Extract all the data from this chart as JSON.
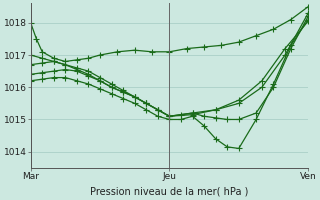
{
  "bg_color": "#cce8e0",
  "line_color": "#1a6b1a",
  "grid_color": "#aacfc8",
  "xlabel": "Pression niveau de la mer( hPa )",
  "xtick_labels": [
    "Mar",
    "Jeu",
    "Ven"
  ],
  "xtick_positions": [
    0,
    48,
    96
  ],
  "ylim": [
    1013.5,
    1018.6
  ],
  "yticks": [
    1014,
    1015,
    1016,
    1017,
    1018
  ],
  "xlim": [
    0,
    96
  ],
  "series": [
    {
      "x": [
        0,
        2,
        4,
        8,
        12,
        16,
        20,
        24,
        30,
        36,
        42,
        48,
        54,
        60,
        66,
        72,
        78,
        84,
        90,
        96
      ],
      "y": [
        1018.0,
        1017.5,
        1017.1,
        1016.9,
        1016.8,
        1016.85,
        1016.9,
        1017.0,
        1017.1,
        1017.15,
        1017.1,
        1017.1,
        1017.2,
        1017.25,
        1017.3,
        1017.4,
        1017.6,
        1017.8,
        1018.1,
        1018.5
      ]
    },
    {
      "x": [
        0,
        4,
        8,
        12,
        16,
        20,
        24,
        28,
        32,
        36,
        40,
        44,
        48,
        56,
        64,
        72,
        80,
        88,
        96
      ],
      "y": [
        1016.7,
        1016.75,
        1016.8,
        1016.7,
        1016.6,
        1016.5,
        1016.3,
        1016.1,
        1015.9,
        1015.7,
        1015.5,
        1015.3,
        1015.1,
        1015.2,
        1015.3,
        1015.5,
        1016.0,
        1017.0,
        1018.3
      ]
    },
    {
      "x": [
        0,
        4,
        8,
        12,
        16,
        20,
        24,
        28,
        32,
        36,
        40,
        44,
        48,
        52,
        56,
        60,
        64,
        68,
        72,
        78,
        84,
        90,
        96
      ],
      "y": [
        1016.4,
        1016.45,
        1016.5,
        1016.55,
        1016.5,
        1016.35,
        1016.2,
        1016.0,
        1015.85,
        1015.7,
        1015.5,
        1015.3,
        1015.1,
        1015.15,
        1015.2,
        1015.1,
        1015.05,
        1015.0,
        1015.0,
        1015.2,
        1016.0,
        1017.2,
        1018.2
      ]
    },
    {
      "x": [
        0,
        4,
        8,
        12,
        16,
        20,
        24,
        28,
        32,
        36,
        40,
        44,
        48,
        52,
        56,
        60,
        64,
        68,
        72,
        78,
        84,
        90,
        96
      ],
      "y": [
        1016.2,
        1016.25,
        1016.3,
        1016.3,
        1016.2,
        1016.1,
        1015.95,
        1015.8,
        1015.65,
        1015.5,
        1015.3,
        1015.1,
        1015.0,
        1015.0,
        1015.1,
        1014.8,
        1014.4,
        1014.15,
        1014.1,
        1015.0,
        1016.1,
        1017.3,
        1018.1
      ]
    },
    {
      "x": [
        0,
        4,
        8,
        12,
        16,
        20,
        24,
        28,
        32,
        36,
        40,
        44,
        48,
        56,
        64,
        72,
        80,
        88,
        96
      ],
      "y": [
        1017.0,
        1016.9,
        1016.8,
        1016.7,
        1016.55,
        1016.4,
        1016.2,
        1016.0,
        1015.85,
        1015.7,
        1015.5,
        1015.3,
        1015.1,
        1015.15,
        1015.3,
        1015.6,
        1016.2,
        1017.2,
        1018.05
      ]
    }
  ],
  "marker": "+",
  "markersize": 4,
  "linewidth": 0.9
}
